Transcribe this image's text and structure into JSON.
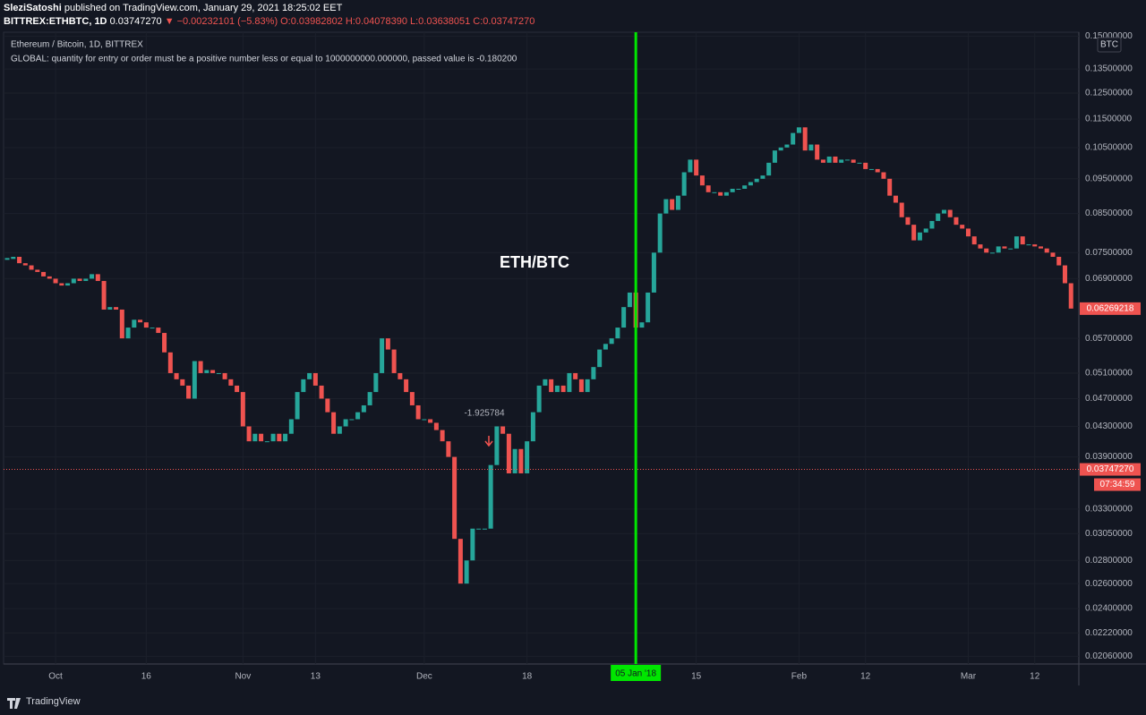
{
  "header": {
    "author": "SleziSatoshi",
    "published": "published on TradingView.com, January 29, 2021 18:25:02 EET",
    "symbol": "BITTREX:ETHBTC, 1D",
    "price": "0.03747270",
    "direction": "▼",
    "change": "−0.00232101 (−5.83%)",
    "ohlc": [
      "O:0.03982802",
      "H:0.04078390",
      "L:0.03638051",
      "C:0.03747270"
    ]
  },
  "legend": {
    "title": "Ethereum / Bitcoin, 1D, BITTREX",
    "message": "GLOBAL: quantity for entry or order must be a positive number less or equal to 1000000000.000000, passed value is -0.180200"
  },
  "footer": {
    "brand": "TradingView"
  },
  "chart_data": {
    "type": "candlestick",
    "title": "ETH/BTC",
    "annotation": "-1.925784",
    "currency": "BTC",
    "log_scale": true,
    "grid": true,
    "up_color": "#26a69a",
    "down_color": "#ef5350",
    "close": [
      0.0735,
      0.074,
      0.0725,
      0.072,
      0.071,
      0.0705,
      0.0695,
      0.069,
      0.068,
      0.0675,
      0.068,
      0.069,
      0.0685,
      0.069,
      0.07,
      0.0685,
      0.0625,
      0.063,
      0.0625,
      0.057,
      0.059,
      0.0605,
      0.06,
      0.059,
      0.059,
      0.058,
      0.0545,
      0.051,
      0.05,
      0.049,
      0.047,
      0.053,
      0.051,
      0.0515,
      0.051,
      0.051,
      0.05,
      0.049,
      0.048,
      0.043,
      0.041,
      0.042,
      0.041,
      0.041,
      0.042,
      0.041,
      0.042,
      0.044,
      0.048,
      0.05,
      0.051,
      0.049,
      0.047,
      0.045,
      0.042,
      0.043,
      0.044,
      0.044,
      0.045,
      0.046,
      0.048,
      0.051,
      0.057,
      0.055,
      0.051,
      0.05,
      0.048,
      0.046,
      0.044,
      0.044,
      0.0435,
      0.0425,
      0.041,
      0.039,
      0.03,
      0.026,
      0.028,
      0.031,
      0.031,
      0.031,
      0.038,
      0.043,
      0.042,
      0.037,
      0.04,
      0.037,
      0.041,
      0.045,
      0.049,
      0.05,
      0.048,
      0.049,
      0.048,
      0.051,
      0.05,
      0.048,
      0.05,
      0.052,
      0.055,
      0.056,
      0.057,
      0.059,
      0.063,
      0.066,
      0.059,
      0.06,
      0.066,
      0.075,
      0.085,
      0.089,
      0.086,
      0.09,
      0.097,
      0.101,
      0.096,
      0.093,
      0.091,
      0.091,
      0.09,
      0.091,
      0.092,
      0.092,
      0.093,
      0.094,
      0.095,
      0.096,
      0.1,
      0.104,
      0.105,
      0.106,
      0.11,
      0.112,
      0.104,
      0.106,
      0.101,
      0.1,
      0.102,
      0.1,
      0.101,
      0.101,
      0.1,
      0.1,
      0.098,
      0.098,
      0.097,
      0.095,
      0.09,
      0.088,
      0.084,
      0.082,
      0.078,
      0.08,
      0.081,
      0.083,
      0.085,
      0.086,
      0.084,
      0.082,
      0.081,
      0.079,
      0.077,
      0.076,
      0.075,
      0.075,
      0.0765,
      0.076,
      0.076,
      0.079,
      0.077,
      0.077,
      0.0765,
      0.076,
      0.075,
      0.074,
      0.072,
      0.068,
      0.0627
    ],
    "xlim": [
      -0.6,
      177.3
    ],
    "xticks": [
      {
        "value": 8,
        "label": "Oct"
      },
      {
        "value": 23,
        "label": "16"
      },
      {
        "value": 39,
        "label": "Nov"
      },
      {
        "value": 51,
        "label": "13"
      },
      {
        "value": 69,
        "label": "Dec"
      },
      {
        "value": 86,
        "label": "18"
      },
      {
        "value": 114,
        "label": "15"
      },
      {
        "value": 131,
        "label": "Feb"
      },
      {
        "value": 142,
        "label": "12"
      },
      {
        "value": 159,
        "label": "Mar"
      },
      {
        "value": 170,
        "label": "12"
      }
    ],
    "vline": {
      "x": 104,
      "label": "05 Jan '18",
      "color": "#00e600"
    },
    "ylim": [
      0.0201,
      0.151
    ],
    "yticks": [
      {
        "value": 0.15,
        "label": "0.15000000"
      },
      {
        "value": 0.135,
        "label": "0.13500000"
      },
      {
        "value": 0.125,
        "label": "0.12500000"
      },
      {
        "value": 0.115,
        "label": "0.11500000"
      },
      {
        "value": 0.105,
        "label": "0.10500000"
      },
      {
        "value": 0.095,
        "label": "0.09500000"
      },
      {
        "value": 0.085,
        "label": "0.08500000"
      },
      {
        "value": 0.075,
        "label": "0.07500000"
      },
      {
        "value": 0.069,
        "label": "0.06900000"
      },
      {
        "value": 0.057,
        "label": "0.05700000"
      },
      {
        "value": 0.051,
        "label": "0.05100000"
      },
      {
        "value": 0.047,
        "label": "0.04700000"
      },
      {
        "value": 0.043,
        "label": "0.04300000"
      },
      {
        "value": 0.039,
        "label": "0.03900000"
      },
      {
        "value": 0.033,
        "label": "0.03300000"
      },
      {
        "value": 0.0305,
        "label": "0.03050000"
      },
      {
        "value": 0.028,
        "label": "0.02800000"
      },
      {
        "value": 0.026,
        "label": "0.02600000"
      },
      {
        "value": 0.024,
        "label": "0.02400000"
      },
      {
        "value": 0.0222,
        "label": "0.02220000"
      },
      {
        "value": 0.0206,
        "label": "0.02060000"
      }
    ],
    "last_price": {
      "value": 0.06269218,
      "label": "0.06269218"
    },
    "current_price": {
      "value": 0.0374727,
      "label": "0.03747270",
      "countdown": "07:34:59"
    }
  }
}
